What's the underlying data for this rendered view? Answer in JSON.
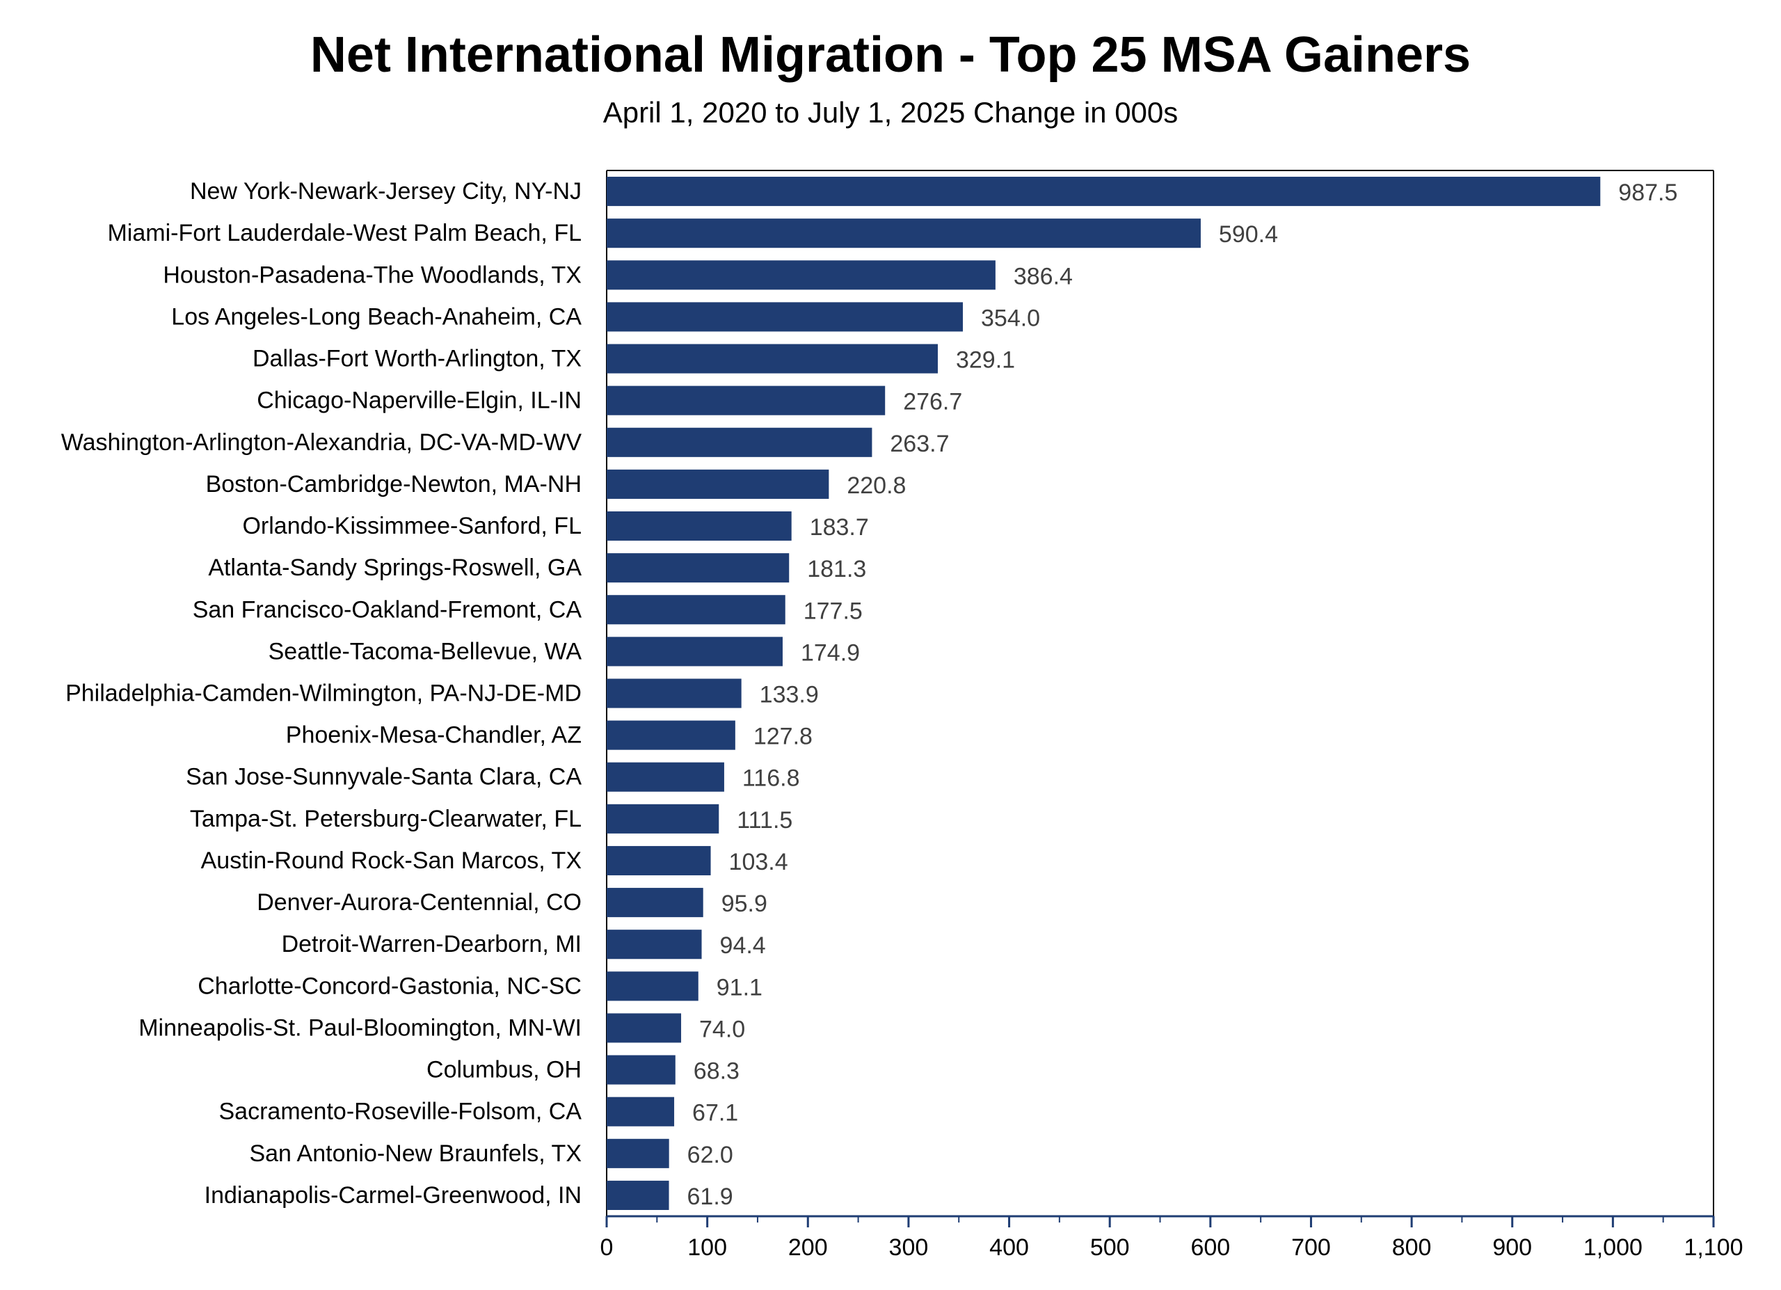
{
  "chart_data": {
    "type": "bar",
    "orientation": "horizontal",
    "title": "Net International Migration - Top 25 MSA Gainers",
    "subtitle": "April 1, 2020 to July 1, 2025 Change in 000s",
    "xlabel": "",
    "ylabel": "",
    "xlim": [
      0,
      1100
    ],
    "grid": false,
    "legend": "none",
    "bar_color": "#1f3d73",
    "ticks": [
      {
        "value": 0,
        "label": "0"
      },
      {
        "value": 100,
        "label": "100"
      },
      {
        "value": 200,
        "label": "200"
      },
      {
        "value": 300,
        "label": "300"
      },
      {
        "value": 400,
        "label": "400"
      },
      {
        "value": 500,
        "label": "500"
      },
      {
        "value": 600,
        "label": "600"
      },
      {
        "value": 700,
        "label": "700"
      },
      {
        "value": 800,
        "label": "800"
      },
      {
        "value": 900,
        "label": "900"
      },
      {
        "value": 1000,
        "label": "1,000"
      },
      {
        "value": 1100,
        "label": "1,100"
      }
    ],
    "categories": [
      "New York-Newark-Jersey City, NY-NJ",
      "Miami-Fort Lauderdale-West Palm Beach, FL",
      "Houston-Pasadena-The Woodlands, TX",
      "Los Angeles-Long Beach-Anaheim, CA",
      "Dallas-Fort Worth-Arlington, TX",
      "Chicago-Naperville-Elgin, IL-IN",
      "Washington-Arlington-Alexandria, DC-VA-MD-WV",
      "Boston-Cambridge-Newton, MA-NH",
      "Orlando-Kissimmee-Sanford, FL",
      "Atlanta-Sandy Springs-Roswell, GA",
      "San Francisco-Oakland-Fremont, CA",
      "Seattle-Tacoma-Bellevue, WA",
      "Philadelphia-Camden-Wilmington, PA-NJ-DE-MD",
      "Phoenix-Mesa-Chandler, AZ",
      "San Jose-Sunnyvale-Santa Clara, CA",
      "Tampa-St. Petersburg-Clearwater, FL",
      "Austin-Round Rock-San Marcos, TX",
      "Denver-Aurora-Centennial, CO",
      "Detroit-Warren-Dearborn, MI",
      "Charlotte-Concord-Gastonia, NC-SC",
      "Minneapolis-St. Paul-Bloomington, MN-WI",
      "Columbus, OH",
      "Sacramento-Roseville-Folsom, CA",
      "San Antonio-New Braunfels, TX",
      "Indianapolis-Carmel-Greenwood, IN"
    ],
    "values": [
      987.5,
      590.4,
      386.4,
      354.0,
      329.1,
      276.7,
      263.7,
      220.8,
      183.7,
      181.3,
      177.5,
      174.9,
      133.9,
      127.8,
      116.8,
      111.5,
      103.4,
      95.9,
      94.4,
      91.1,
      74.0,
      68.3,
      67.1,
      62.0,
      61.9
    ],
    "value_labels": [
      "987.5",
      "590.4",
      "386.4",
      "354.0",
      "329.1",
      "276.7",
      "263.7",
      "220.8",
      "183.7",
      "181.3",
      "177.5",
      "174.9",
      "133.9",
      "127.8",
      "116.8",
      "111.5",
      "103.4",
      "95.9",
      "94.4",
      "91.1",
      "74.0",
      "68.3",
      "67.1",
      "62.0",
      "61.9"
    ]
  }
}
